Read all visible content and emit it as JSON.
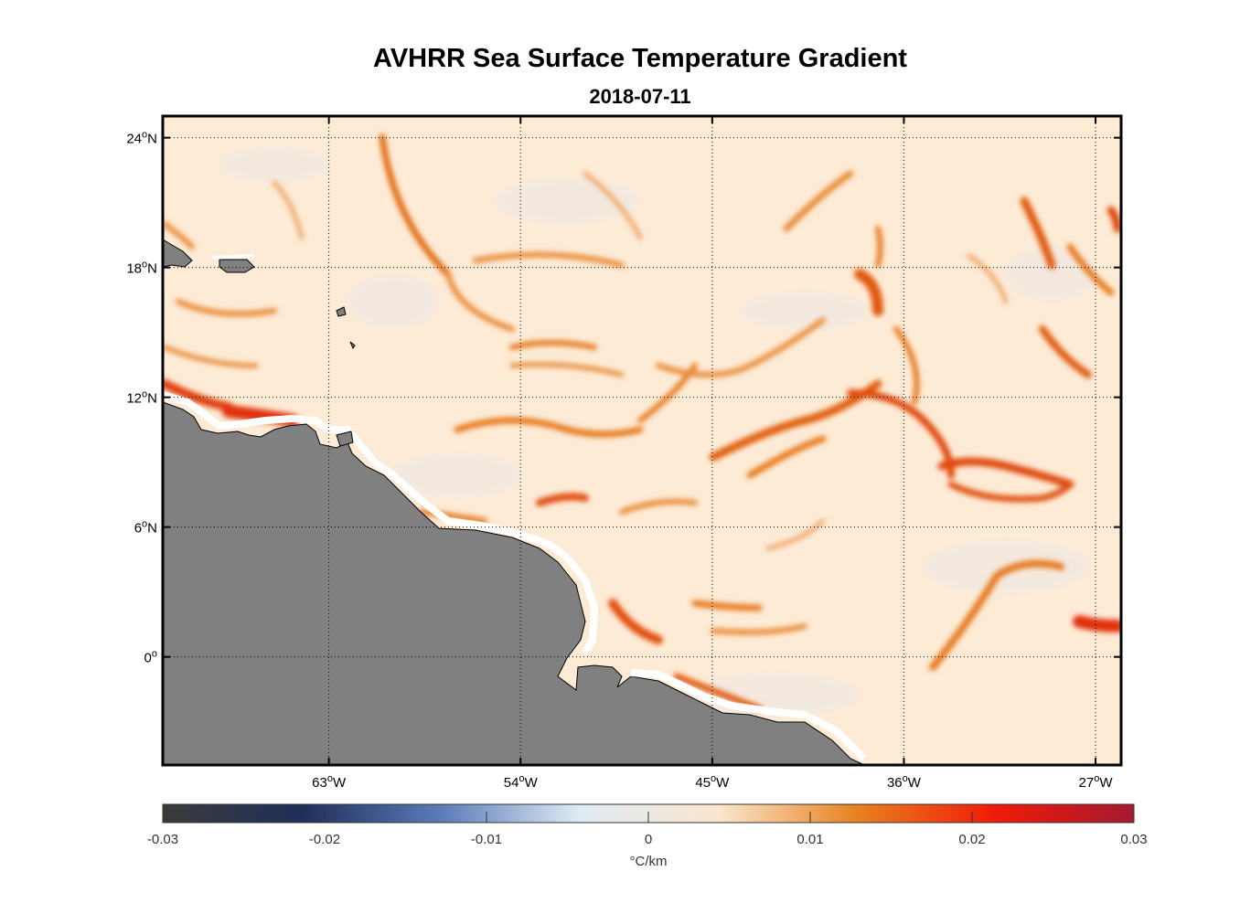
{
  "title": "AVHRR Sea Surface Temperature Gradient",
  "subtitle": "2018-07-11",
  "map": {
    "lon_range": [
      -70.8,
      -25.8
    ],
    "lat_range": [
      -5,
      25
    ],
    "lon_ticks": [
      {
        "value": -63,
        "label": "63",
        "sup": "o",
        "hemi": "W"
      },
      {
        "value": -54,
        "label": "54",
        "sup": "o",
        "hemi": "W"
      },
      {
        "value": -45,
        "label": "45",
        "sup": "o",
        "hemi": "W"
      },
      {
        "value": -36,
        "label": "36",
        "sup": "o",
        "hemi": "W"
      },
      {
        "value": -27,
        "label": "27",
        "sup": "o",
        "hemi": "W"
      }
    ],
    "lat_ticks": [
      {
        "value": 24,
        "label": "24",
        "sup": "o",
        "hemi": "N"
      },
      {
        "value": 18,
        "label": "18",
        "sup": "o",
        "hemi": "N"
      },
      {
        "value": 12,
        "label": "12",
        "sup": "o",
        "hemi": "N"
      },
      {
        "value": 6,
        "label": "6",
        "sup": "o",
        "hemi": "N"
      },
      {
        "value": 0,
        "label": "0",
        "sup": "o",
        "hemi": ""
      }
    ],
    "grid": "dotted",
    "land_color": "#808080",
    "ocean_base_color": "#fdebd6"
  },
  "colorbar": {
    "range": [
      -0.03,
      0.03
    ],
    "ticks": [
      "-0.03",
      "-0.02",
      "-0.01",
      "0",
      "0.01",
      "0.02",
      "0.03"
    ],
    "tick_values": [
      -0.03,
      -0.02,
      -0.01,
      0,
      0.01,
      0.02,
      0.03
    ],
    "label": "°C/km",
    "colors": [
      "#3b3b3b",
      "#1f2f5a",
      "#5a7bb8",
      "#dfeaf4",
      "#fbe6cf",
      "#e8821f",
      "#f21a0a",
      "#a31a2f"
    ]
  }
}
